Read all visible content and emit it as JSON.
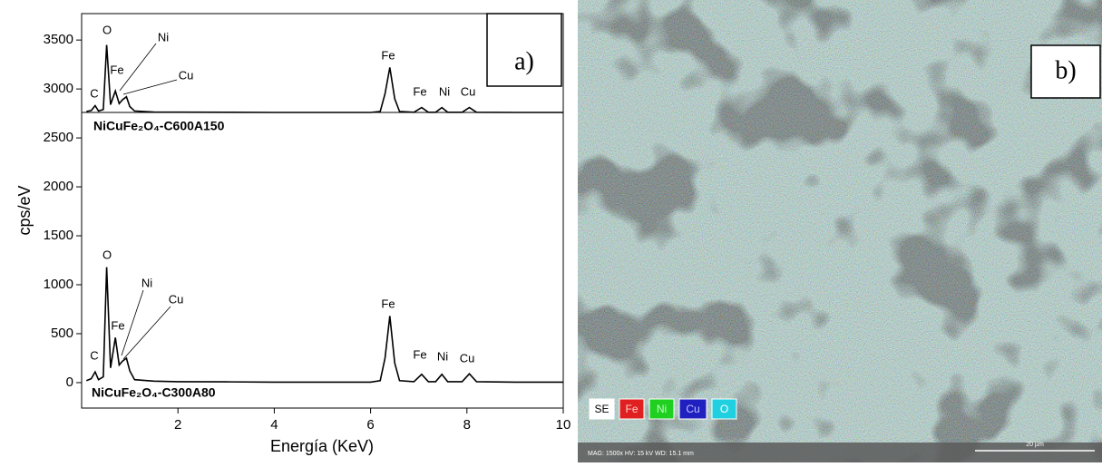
{
  "chart_data": {
    "type": "line",
    "panel_label": "a)",
    "x_label": "Energía (KeV)",
    "y_label": "cps/eV",
    "xlim": [
      0,
      10
    ],
    "xticks": [
      2,
      4,
      6,
      8,
      10
    ],
    "ylim": [
      -260,
      3770
    ],
    "yticks": [
      0,
      500,
      1000,
      1500,
      2000,
      2500,
      3000,
      3500
    ],
    "x": [
      0.1,
      0.2,
      0.28,
      0.35,
      0.45,
      0.52,
      0.6,
      0.7,
      0.78,
      0.85,
      0.93,
      1.0,
      1.1,
      1.5,
      2,
      3,
      4,
      5,
      6,
      6.2,
      6.3,
      6.4,
      6.5,
      6.6,
      6.9,
      7.06,
      7.2,
      7.35,
      7.48,
      7.6,
      7.9,
      8.05,
      8.2,
      9,
      10
    ],
    "series": [
      {
        "name": "NiCuFe₂O₄-C600A150",
        "color": "#000000",
        "values": [
          2770,
          2780,
          2830,
          2775,
          2790,
          3450,
          2840,
          2980,
          2850,
          2890,
          2920,
          2820,
          2775,
          2765,
          2763,
          2762,
          2760,
          2760,
          2760,
          2770,
          2950,
          3220,
          2900,
          2770,
          2762,
          2810,
          2762,
          2762,
          2810,
          2762,
          2762,
          2810,
          2762,
          2760,
          2760
        ]
      },
      {
        "name": "NiCuFe₂O₄-C300A80",
        "color": "#000000",
        "values": [
          20,
          40,
          110,
          30,
          60,
          1180,
          150,
          460,
          180,
          220,
          250,
          120,
          30,
          15,
          10,
          8,
          5,
          5,
          5,
          20,
          250,
          680,
          200,
          20,
          10,
          85,
          10,
          10,
          85,
          10,
          10,
          90,
          10,
          5,
          5
        ]
      }
    ],
    "annotations": [
      "C",
      "O",
      "Fe",
      "Ni",
      "Cu",
      "Fe",
      "Fe",
      "Ni",
      "Cu",
      "C",
      "O",
      "Fe",
      "Ni",
      "Cu",
      "Fe",
      "Fe",
      "Ni",
      "Cu"
    ]
  },
  "image_panel": {
    "label": "b)",
    "legend": [
      "SE",
      "Fe",
      "Ni",
      "Cu",
      "O"
    ],
    "info": "MAG: 1500x    HV: 15 kV    WD: 15.1 mm",
    "scale_bar": "20 µm"
  }
}
